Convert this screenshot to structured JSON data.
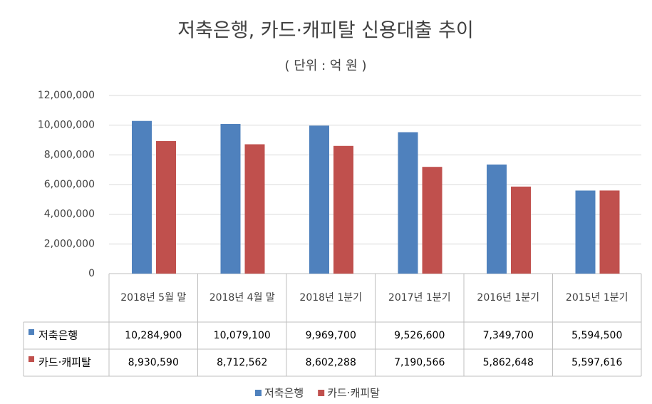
{
  "chart_data": {
    "type": "bar",
    "title": "저축은행, 카드·캐피탈 신용대출 추이",
    "subtitle": "( 단위 : 억 원 )",
    "categories": [
      "2018년 5월 말",
      "2018년 4월 말",
      "2018년 1분기",
      "2017년 1분기",
      "2016년 1분기",
      "2015년 1분기"
    ],
    "series": [
      {
        "name": "저축은행",
        "color": "#4f81bd",
        "values": [
          10284900,
          10079100,
          9969700,
          9526600,
          7349700,
          5594500
        ],
        "value_labels": [
          "10,284,900",
          "10,079,100",
          "9,969,700",
          "9,526,600",
          "7,349,700",
          "5,594,500"
        ]
      },
      {
        "name": "카드·캐피탈",
        "color": "#c0504d",
        "values": [
          8930590,
          8712562,
          8602288,
          7190566,
          5862648,
          5597616
        ],
        "value_labels": [
          "8,930,590",
          "8,712,562",
          "8,602,288",
          "7,190,566",
          "5,862,648",
          "5,597,616"
        ]
      }
    ],
    "ylim": [
      0,
      12000000
    ],
    "yticks": [
      0,
      {
        "value": 2000000,
        "label": "2,000,000"
      },
      {
        "value": 4000000,
        "label": "4,000,000"
      },
      {
        "value": 6000000,
        "label": "6,000,000"
      },
      {
        "value": 8000000,
        "label": "8,000,000"
      },
      {
        "value": 10000000,
        "label": "10,000,000"
      },
      {
        "value": 12000000,
        "label": "12,000,000"
      }
    ],
    "grid": true
  }
}
